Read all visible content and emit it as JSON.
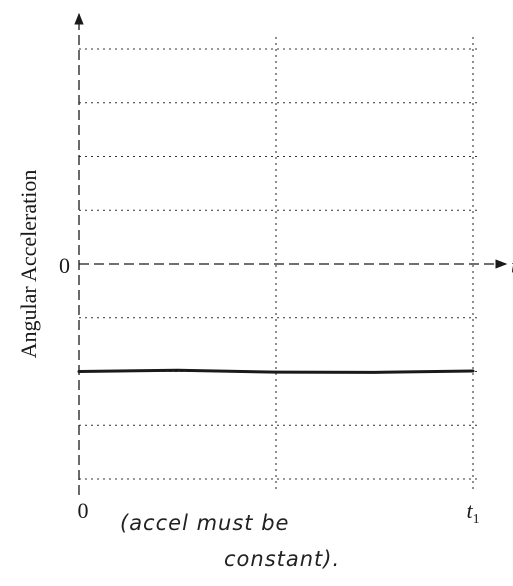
{
  "chart_data": {
    "type": "line",
    "ylabel": "Angular Acceleration",
    "x_ticks": [
      {
        "label": "0",
        "value": 0
      },
      {
        "label": "t1",
        "value": 1
      }
    ],
    "y_ticks": [
      {
        "label": "0",
        "value": 0
      }
    ],
    "x_axis_end_label": "t",
    "xlim": [
      0,
      1
    ],
    "ylim": [
      -4,
      4
    ],
    "gridlines": {
      "horizontal": [
        4,
        3,
        2,
        1,
        -1,
        -2,
        -3,
        -4
      ],
      "vertical": [
        0.5,
        1.0
      ]
    },
    "grid": true,
    "grid_style": "dotted",
    "series": [
      {
        "x": [
          0,
          0.25,
          0.5,
          0.75,
          1.0
        ],
        "values": [
          -2.0,
          -2.0,
          -2.0,
          -2.0,
          -2.0
        ],
        "color": "#1a1a1a"
      }
    ],
    "annotation": {
      "line_1": "(accel must be",
      "line_2": "constant)."
    }
  }
}
